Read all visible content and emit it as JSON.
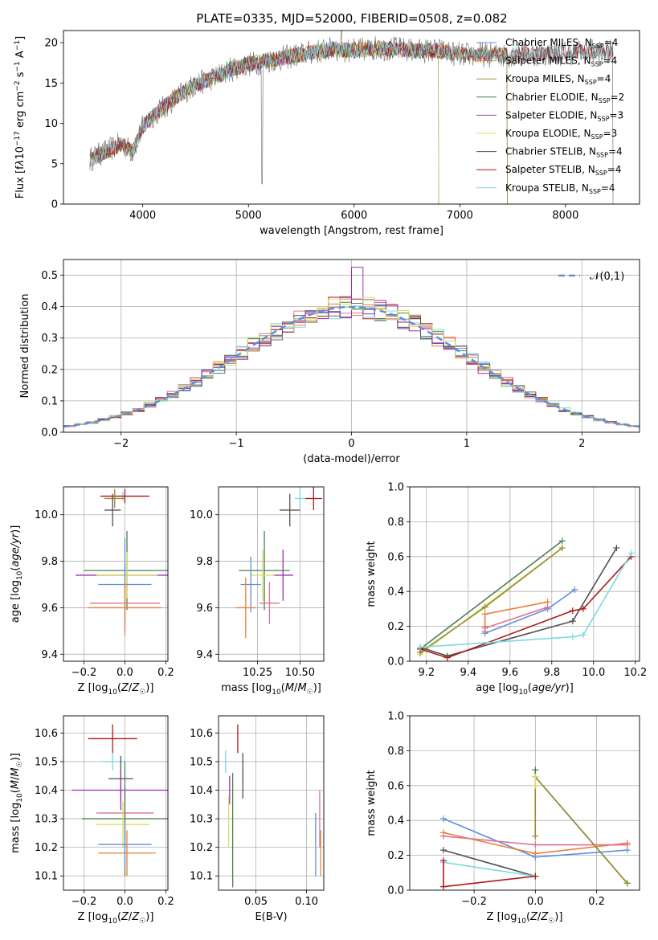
{
  "figure": {
    "title": "PLATE=0335, MJD=52000, FIBERID=0508, z=0.082"
  },
  "chart_data": [
    {
      "id": "spectrum",
      "type": "line",
      "xlabel": "wavelength [Angstrom, rest frame]",
      "ylabel": "Flux [f_λ 10^-17 erg cm^-2 s^-1 A^-1]",
      "xlim": [
        3250,
        8700
      ],
      "ylim": [
        0,
        21.5
      ],
      "xticks": [
        4000,
        5000,
        6000,
        7000,
        8000
      ],
      "yticks": [
        0,
        5,
        10,
        15,
        20
      ],
      "grid": false,
      "legend_position": "right",
      "continuum": {
        "x": [
          3500,
          3600,
          3700,
          3800,
          3900,
          4000,
          4100,
          4200,
          4300,
          4400,
          4500,
          4600,
          4700,
          4800,
          4900,
          5000,
          5200,
          5400,
          5600,
          5800,
          6000,
          6200,
          6400,
          6600,
          6800,
          7000,
          7200,
          7400,
          7600,
          7800,
          8000,
          8200,
          8400
        ],
        "y": [
          5.5,
          6.2,
          6.8,
          7.5,
          6.5,
          9.5,
          11.0,
          12.0,
          13.0,
          14.0,
          14.8,
          15.3,
          15.8,
          16.5,
          17.0,
          17.3,
          17.8,
          18.3,
          18.8,
          19.2,
          19.0,
          19.3,
          19.2,
          19.0,
          19.0,
          18.5,
          18.5,
          18.4,
          18.6,
          18.6,
          18.7,
          18.9,
          18.8
        ]
      },
      "series": [
        {
          "name": "Chabrier MILES, N_SSP=4",
          "color": "#5f8fdb",
          "xmax": 7450
        },
        {
          "name": "Salpeter MILES, N_SSP=4",
          "color": "#e8803a",
          "xmax": 7450
        },
        {
          "name": "Kroupa MILES, N_SSP=4",
          "color": "#9a8a30",
          "xmax": 7450
        },
        {
          "name": "Chabrier ELODIE, N_SSP=2",
          "color": "#4f7f4f",
          "xmax": 6800
        },
        {
          "name": "Salpeter ELODIE, N_SSP=3",
          "color": "#9b30b5",
          "xmax": 6800
        },
        {
          "name": "Kroupa ELODIE, N_SSP=3",
          "color": "#d8e060",
          "xmax": 6800
        },
        {
          "name": "Chabrier STELIB, N_SSP=4",
          "color": "#505050",
          "xmax": 8450
        },
        {
          "name": "Salpeter STELIB, N_SSP=4",
          "color": "#b01818",
          "xmax": 8450
        },
        {
          "name": "Kroupa STELIB, N_SSP=4",
          "color": "#7fd8e0",
          "xmax": 8450
        }
      ],
      "data_color": "#808080"
    },
    {
      "id": "residuals",
      "type": "line",
      "xlabel": "(data-model)/error",
      "ylabel": "Normed distribution",
      "xlim": [
        -2.5,
        2.5
      ],
      "ylim": [
        0,
        0.55
      ],
      "xticks": [
        -2,
        -1,
        0,
        1,
        2
      ],
      "yticks": [
        0.0,
        0.1,
        0.2,
        0.3,
        0.4,
        0.5
      ],
      "grid": true,
      "legend": "𝒩(0,1)",
      "legend_position": "top-right",
      "gaussian": {
        "mean": 0,
        "sigma": 1,
        "color": "#5f8fdb"
      },
      "hist_bin_width": 0.1,
      "hist_colors": [
        "#5f8fdb",
        "#e8803a",
        "#4f7f4f",
        "#e07090",
        "#b01818",
        "#7fd8e0",
        "#505050",
        "#9b30b5",
        "#d8e060"
      ]
    },
    {
      "id": "z_vs_age",
      "type": "scatter",
      "xlabel": "Z [log₁₀(Z/Z☉)]",
      "ylabel": "age  [log₁₀(age/yr)]",
      "xlim": [
        -0.3,
        0.21
      ],
      "ylim": [
        9.37,
        10.12
      ],
      "xticks": [
        -0.2,
        0.0,
        0.2
      ],
      "yticks": [
        9.4,
        9.6,
        9.8,
        10.0
      ],
      "grid": true,
      "points": [
        {
          "x": -0.01,
          "xerr": 0.1,
          "y": 10.08,
          "yerr": 0.02,
          "color": "#7fd8e0"
        },
        {
          "x": 0.0,
          "xerr": 0.12,
          "y": 10.08,
          "yerr": 0.03,
          "color": "#b01818"
        },
        {
          "x": -0.05,
          "xerr": 0.05,
          "y": 10.07,
          "yerr": 0.04,
          "color": "#9a8a30"
        },
        {
          "x": -0.06,
          "xerr": 0.04,
          "y": 10.02,
          "yerr": 0.07,
          "color": "#505050"
        },
        {
          "x": 0.01,
          "xerr": 0.21,
          "y": 9.76,
          "yerr": 0.17,
          "color": "#4f7f4f"
        },
        {
          "x": 0.0,
          "xerr": 0.24,
          "y": 9.74,
          "yerr": 0.05,
          "color": "#9b30b5"
        },
        {
          "x": 0.01,
          "xerr": 0.15,
          "y": 9.74,
          "yerr": 0.1,
          "color": "#d8e060"
        },
        {
          "x": 0.0,
          "xerr": 0.13,
          "y": 9.7,
          "yerr": 0.2,
          "color": "#5f8fdb"
        },
        {
          "x": 0.0,
          "xerr": 0.17,
          "y": 9.62,
          "yerr": 0.08,
          "color": "#e07090"
        },
        {
          "x": 0.0,
          "xerr": 0.18,
          "y": 9.6,
          "yerr": 0.12,
          "color": "#e8803a"
        }
      ]
    },
    {
      "id": "mass_vs_age",
      "type": "scatter",
      "xlabel": "mass [log₁₀(M/M☉)]",
      "ylabel": "",
      "xlim": [
        10.02,
        10.64
      ],
      "ylim": [
        9.37,
        10.12
      ],
      "xticks": [
        10.25,
        10.5
      ],
      "yticks": [
        9.4,
        9.6,
        9.8,
        10.0
      ],
      "grid": true,
      "points": [
        {
          "x": 10.58,
          "xerr": 0.05,
          "y": 10.07,
          "yerr": 0.05,
          "color": "#b01818"
        },
        {
          "x": 10.5,
          "xerr": 0.03,
          "y": 10.07,
          "yerr": 0.04,
          "color": "#7fd8e0"
        },
        {
          "x": 10.44,
          "xerr": 0.06,
          "y": 10.02,
          "yerr": 0.07,
          "color": "#505050"
        },
        {
          "x": 10.29,
          "xerr": 0.15,
          "y": 9.76,
          "yerr": 0.17,
          "color": "#4f7f4f"
        },
        {
          "x": 10.4,
          "xerr": 0.06,
          "y": 9.74,
          "yerr": 0.11,
          "color": "#9b30b5"
        },
        {
          "x": 10.28,
          "xerr": 0.07,
          "y": 9.74,
          "yerr": 0.11,
          "color": "#d8e060"
        },
        {
          "x": 10.21,
          "xerr": 0.06,
          "y": 9.7,
          "yerr": 0.12,
          "color": "#5f8fdb"
        },
        {
          "x": 10.32,
          "xerr": 0.06,
          "y": 9.62,
          "yerr": 0.09,
          "color": "#e07090"
        },
        {
          "x": 10.18,
          "xerr": 0.06,
          "y": 9.6,
          "yerr": 0.13,
          "color": "#e8803a"
        }
      ]
    },
    {
      "id": "age_vs_weight",
      "type": "line",
      "xlabel": "age  [log₁₀(age/yr)]",
      "ylabel": "mass weight",
      "xlim": [
        9.12,
        10.22
      ],
      "ylim": [
        0,
        1.0
      ],
      "xticks": [
        9.2,
        9.4,
        9.6,
        9.8,
        10.0,
        10.2
      ],
      "yticks": [
        0.0,
        0.2,
        0.4,
        0.6,
        0.8,
        1.0
      ],
      "grid": true,
      "series": [
        {
          "color": "#4f7f4f",
          "x": [
            9.17,
            9.85
          ],
          "y": [
            0.07,
            0.69
          ]
        },
        {
          "color": "#d8e060",
          "x": [
            9.17,
            9.85
          ],
          "y": [
            0.04,
            0.65
          ]
        },
        {
          "color": "#9a8a30",
          "x": [
            9.17,
            9.48,
            9.85
          ],
          "y": [
            0.05,
            0.31,
            0.65
          ]
        },
        {
          "color": "#e8803a",
          "x": [
            9.48,
            9.48,
            9.48,
            9.78
          ],
          "y": [
            0.17,
            0.2,
            0.27,
            0.34
          ]
        },
        {
          "color": "#5f8fdb",
          "x": [
            9.48,
            9.78,
            9.91
          ],
          "y": [
            0.16,
            0.3,
            0.41
          ]
        },
        {
          "color": "#e07090",
          "x": [
            9.48,
            9.78
          ],
          "y": [
            0.19,
            0.31
          ]
        },
        {
          "color": "#505050",
          "x": [
            9.17,
            9.3,
            9.9,
            10.11
          ],
          "y": [
            0.08,
            0.03,
            0.23,
            0.65
          ]
        },
        {
          "color": "#b01818",
          "x": [
            9.17,
            9.3,
            9.9,
            9.95,
            10.18
          ],
          "y": [
            0.07,
            0.02,
            0.29,
            0.3,
            0.6
          ]
        },
        {
          "color": "#7fd8e0",
          "x": [
            9.17,
            9.9,
            9.95,
            10.18
          ],
          "y": [
            0.08,
            0.14,
            0.15,
            0.62
          ]
        }
      ]
    },
    {
      "id": "z_vs_mass",
      "type": "scatter",
      "xlabel": "Z [log₁₀(Z/Z☉)]",
      "ylabel": "mass [log₁₀(M/M☉)]",
      "xlim": [
        -0.3,
        0.21
      ],
      "ylim": [
        10.05,
        10.66
      ],
      "xticks": [
        -0.2,
        0.0,
        0.2
      ],
      "yticks": [
        10.1,
        10.2,
        10.3,
        10.4,
        10.5,
        10.6
      ],
      "grid": true,
      "points": [
        {
          "x": -0.06,
          "xerr": 0.12,
          "y": 10.58,
          "yerr": 0.05,
          "color": "#b01818"
        },
        {
          "x": -0.06,
          "xerr": 0.06,
          "y": 10.5,
          "yerr": 0.03,
          "color": "#7fd8e0"
        },
        {
          "x": -0.02,
          "xerr": 0.06,
          "y": 10.44,
          "yerr": 0.08,
          "color": "#505050"
        },
        {
          "x": -0.02,
          "xerr": 0.24,
          "y": 10.4,
          "yerr": 0.07,
          "color": "#9b30b5"
        },
        {
          "x": 0.0,
          "xerr": 0.14,
          "y": 10.32,
          "yerr": 0.09,
          "color": "#e07090"
        },
        {
          "x": 0.0,
          "xerr": 0.21,
          "y": 10.3,
          "yerr": 0.2,
          "color": "#4f7f4f"
        },
        {
          "x": -0.01,
          "xerr": 0.13,
          "y": 10.28,
          "yerr": 0.08,
          "color": "#d8e060"
        },
        {
          "x": 0.0,
          "xerr": 0.13,
          "y": 10.21,
          "yerr": 0.08,
          "color": "#5f8fdb"
        },
        {
          "x": 0.01,
          "xerr": 0.14,
          "y": 10.18,
          "yerr": 0.08,
          "color": "#e8803a"
        }
      ]
    },
    {
      "id": "ebv_vs_mass",
      "type": "scatter",
      "xlabel": "E(B-V)",
      "ylabel": "",
      "xlim": [
        0.013,
        0.117
      ],
      "ylim": [
        10.05,
        10.66
      ],
      "xticks": [
        0.05,
        0.1
      ],
      "yticks": [
        10.1,
        10.2,
        10.3,
        10.4,
        10.5,
        10.6
      ],
      "grid": true,
      "points": [
        {
          "x": 0.032,
          "xerr": 0,
          "y": 10.58,
          "yerr": 0.05,
          "color": "#b01818"
        },
        {
          "x": 0.02,
          "xerr": 0,
          "y": 10.5,
          "yerr": 0.04,
          "color": "#7fd8e0"
        },
        {
          "x": 0.037,
          "xerr": 0,
          "y": 10.45,
          "yerr": 0.08,
          "color": "#505050"
        },
        {
          "x": 0.024,
          "xerr": 0,
          "y": 10.4,
          "yerr": 0.05,
          "color": "#9b30b5"
        },
        {
          "x": 0.023,
          "xerr": 0,
          "y": 10.29,
          "yerr": 0.09,
          "color": "#d8e060"
        },
        {
          "x": 0.027,
          "xerr": 0,
          "y": 10.26,
          "yerr": 0.2,
          "color": "#4f7f4f"
        },
        {
          "x": 0.113,
          "xerr": 0,
          "y": 10.3,
          "yerr": 0.1,
          "color": "#e07090"
        },
        {
          "x": 0.109,
          "xerr": 0,
          "y": 10.21,
          "yerr": 0.11,
          "color": "#5f8fdb"
        },
        {
          "x": 0.114,
          "xerr": 0,
          "y": 10.18,
          "yerr": 0.08,
          "color": "#e8803a"
        }
      ]
    },
    {
      "id": "z_vs_weight",
      "type": "line",
      "xlabel": "Z [log₁₀(Z/Z☉)]",
      "ylabel": "mass weight",
      "xlim": [
        -0.41,
        0.34
      ],
      "ylim": [
        0,
        1.0
      ],
      "xticks": [
        -0.2,
        0.0,
        0.2
      ],
      "yticks": [
        0.0,
        0.2,
        0.4,
        0.6,
        0.8,
        1.0
      ],
      "grid": true,
      "series": [
        {
          "color": "#5f8fdb",
          "x": [
            -0.3,
            0.0,
            0.3
          ],
          "y": [
            0.41,
            0.19,
            0.23
          ]
        },
        {
          "color": "#e8803a",
          "x": [
            -0.3,
            0.0,
            0.3
          ],
          "y": [
            0.33,
            0.21,
            0.27
          ]
        },
        {
          "color": "#e07090",
          "x": [
            -0.3,
            0.0,
            0.3
          ],
          "y": [
            0.31,
            0.26,
            0.26
          ]
        },
        {
          "color": "#505050",
          "x": [
            -0.3,
            0.0
          ],
          "y": [
            0.23,
            0.08
          ]
        },
        {
          "color": "#7fd8e0",
          "x": [
            -0.3,
            0.0
          ],
          "y": [
            0.16,
            0.08
          ]
        },
        {
          "color": "#b01818",
          "x": [
            -0.3,
            -0.3,
            0.0
          ],
          "y": [
            0.17,
            0.02,
            0.08
          ]
        },
        {
          "color": "#4f7f4f",
          "x": [
            0.0,
            0.0,
            0.3
          ],
          "y": [
            0.69,
            0.65,
            0.04
          ]
        },
        {
          "color": "#9a8a30",
          "x": [
            0.0,
            0.0,
            0.3
          ],
          "y": [
            0.31,
            0.65,
            0.04
          ]
        },
        {
          "color": "#d8e060",
          "x": [
            0.0,
            0.0
          ],
          "y": [
            0.6,
            0.65
          ]
        }
      ]
    }
  ]
}
